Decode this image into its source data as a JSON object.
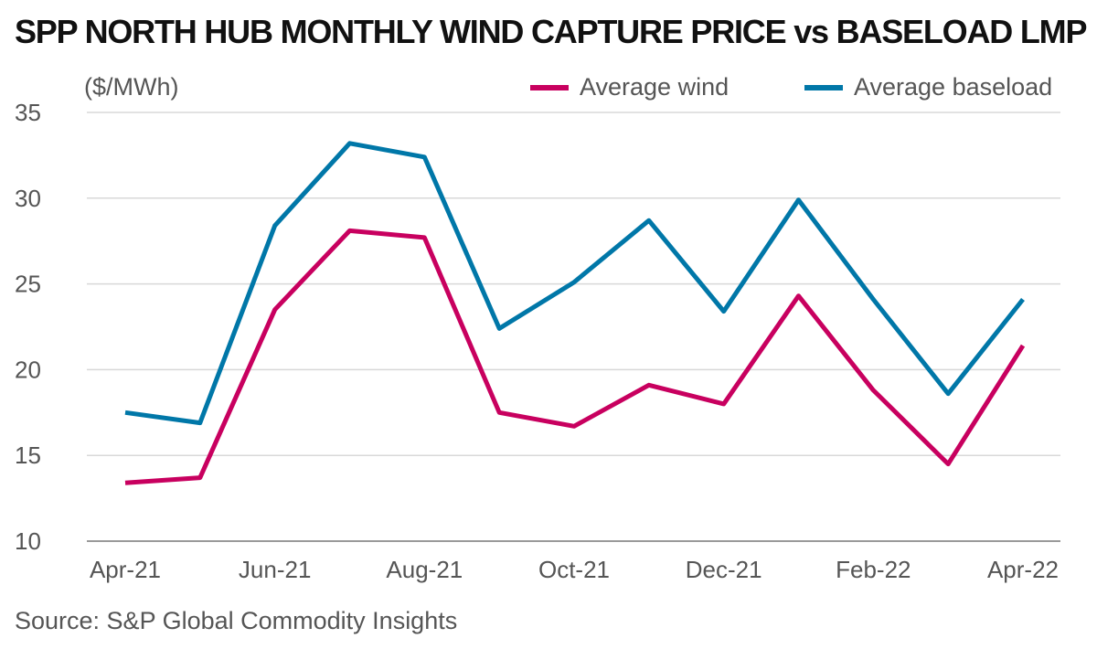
{
  "title": "SPP NORTH HUB MONTHLY WIND CAPTURE PRICE vs BASELOAD LMP",
  "unit_label": "($/MWh)",
  "source": "Source: S&P Global Commodity Insights",
  "colors": {
    "wind": "#c8005f",
    "baseload": "#0077a8",
    "grid": "#d8d8d8"
  },
  "chart_data": {
    "type": "line",
    "title": "SPP NORTH HUB MONTHLY WIND CAPTURE PRICE vs BASELOAD LMP",
    "ylabel": "($/MWh)",
    "ylim": [
      10,
      35
    ],
    "yticks": [
      10,
      15,
      20,
      25,
      30,
      35
    ],
    "grid": true,
    "legend_position": "top-right",
    "categories": [
      "Apr-21",
      "May-21",
      "Jun-21",
      "Jul-21",
      "Aug-21",
      "Sep-21",
      "Oct-21",
      "Nov-21",
      "Dec-21",
      "Jan-22",
      "Feb-22",
      "Mar-22",
      "Apr-22"
    ],
    "xtick_labels": [
      "Apr-21",
      "",
      "Jun-21",
      "",
      "Aug-21",
      "",
      "Oct-21",
      "",
      "Dec-21",
      "",
      "Feb-22",
      "",
      "Apr-22"
    ],
    "series": [
      {
        "name": "Average wind",
        "color": "#c8005f",
        "values": [
          13.4,
          13.7,
          23.5,
          28.1,
          27.7,
          17.5,
          16.7,
          19.1,
          18.0,
          24.3,
          18.8,
          14.5,
          21.4
        ]
      },
      {
        "name": "Average baseload",
        "color": "#0077a8",
        "values": [
          17.5,
          16.9,
          28.4,
          33.2,
          32.4,
          22.4,
          25.1,
          28.7,
          23.4,
          29.9,
          24.1,
          18.6,
          24.1
        ]
      }
    ]
  }
}
